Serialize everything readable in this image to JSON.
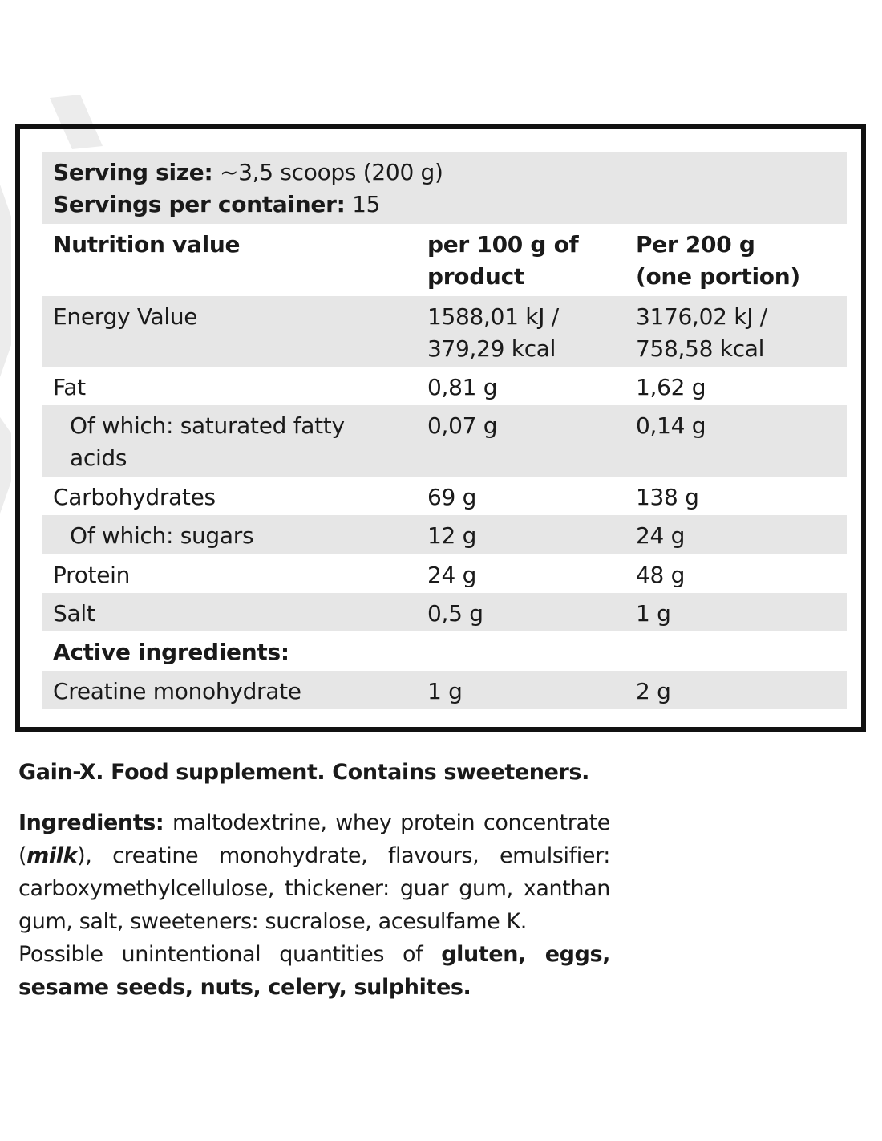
{
  "serving": {
    "size_label": "Serving size:",
    "size_value": " ~3,5 scoops (200 g)",
    "per_container_label": "Servings per container:",
    "per_container_value": " 15"
  },
  "table_header": {
    "col1": "Nutrition value",
    "col2_line1": "per 100 g of",
    "col2_line2": "product",
    "col3_line1": "Per 200 g",
    "col3_line2": "(one portion)"
  },
  "rows": [
    {
      "name": "Energy Value",
      "per100_line1": "1588,01 kJ /",
      "per100_line2": "379,29 kcal",
      "per200_line1": "3176,02 kJ /",
      "per200_line2": "758,58 kcal"
    },
    {
      "name": "Fat",
      "per100": "0,81 g",
      "per200": "1,62 g"
    },
    {
      "name_line1": "Of which: saturated fatty",
      "name_line2": "acids",
      "per100": "0,07 g",
      "per200": "0,14 g"
    },
    {
      "name": "Carbohydrates",
      "per100": "69 g",
      "per200": "138 g"
    },
    {
      "name": "Of which: sugars",
      "per100": "12 g",
      "per200": "24 g"
    },
    {
      "name": "Protein",
      "per100": "24 g",
      "per200": "48 g"
    },
    {
      "name": "Salt",
      "per100": "0,5 g",
      "per200": "1 g"
    }
  ],
  "active_ingredients": {
    "heading": "Active ingredients:",
    "rows": [
      {
        "name": "Creatine monohydrate",
        "per100": "1 g",
        "per200": "2 g"
      }
    ]
  },
  "product_line": "Gain-X. Food supplement. Contains sweeteners.",
  "ingredients": {
    "label": "Ingredients:",
    "text_before_milk": " maltodextrine, whey protein concentrate (",
    "milk": "milk",
    "text_after_milk": "), creatine monohydrate, flavours, emulsifier: carboxymethylcellulose, thickener: guar gum, xanthan gum, salt, sweeteners: sucralose, acesulfame K.",
    "possible_prefix": "Possible unintentional quantities of ",
    "allergens": "gluten, eggs, sesame seeds, nuts, celery, sulphites."
  }
}
